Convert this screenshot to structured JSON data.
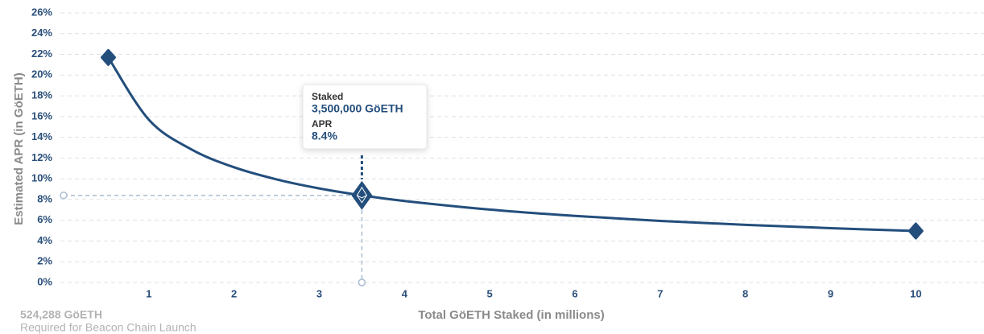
{
  "chart_data": {
    "type": "line",
    "xlabel": "Total GöETH Staked  (in millions)",
    "ylabel": "Estimated APR (in GöETH)",
    "x": [
      0.524288,
      1,
      1.5,
      2,
      2.5,
      3,
      3.5,
      4,
      5,
      6,
      7,
      8,
      9,
      10
    ],
    "series": [
      {
        "name": "Estimated APR",
        "color": "#234e7c",
        "values": [
          21.7,
          15.7,
          12.83,
          11.11,
          9.94,
          9.07,
          8.4,
          7.86,
          7.03,
          6.42,
          5.94,
          5.56,
          5.24,
          4.97
        ]
      }
    ],
    "xlim": [
      0,
      10.8
    ],
    "xticks": [
      1,
      2,
      3,
      4,
      5,
      6,
      7,
      8,
      9,
      10
    ],
    "ylim": [
      0,
      26
    ],
    "yticks": [
      {
        "value": 0,
        "label": "0%"
      },
      {
        "value": 2,
        "label": "2%"
      },
      {
        "value": 4,
        "label": "4%"
      },
      {
        "value": 6,
        "label": "6%"
      },
      {
        "value": 8,
        "label": "8%"
      },
      {
        "value": 10,
        "label": "10%"
      },
      {
        "value": 12,
        "label": "12%"
      },
      {
        "value": 14,
        "label": "14%"
      },
      {
        "value": 16,
        "label": "16%"
      },
      {
        "value": 18,
        "label": "18%"
      },
      {
        "value": 20,
        "label": "20%"
      },
      {
        "value": 22,
        "label": "22%"
      },
      {
        "value": 24,
        "label": "24%"
      },
      {
        "value": 26,
        "label": "26%"
      }
    ],
    "grid": true,
    "highlight_x": 3.5,
    "tooltip": {
      "staked_title": "Staked",
      "staked": "3,500,000 GöETH",
      "apr_title": "APR",
      "apr": "8.4%"
    },
    "annotation": {
      "title": "524,288 GöETH",
      "text": "Required for Beacon Chain Launch"
    }
  }
}
